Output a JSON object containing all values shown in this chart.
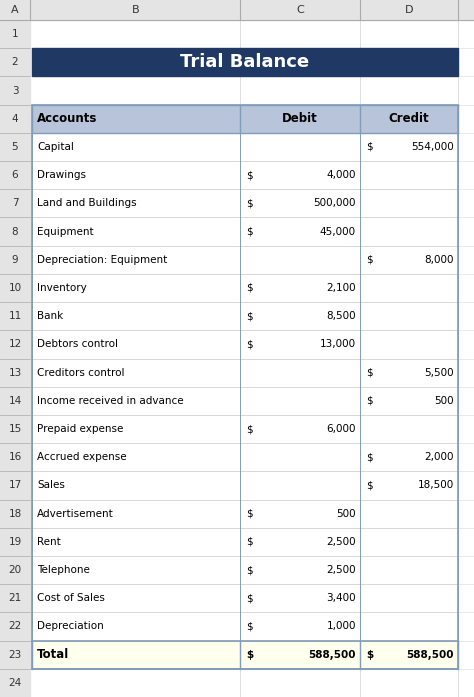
{
  "title": "Trial Balance",
  "title_bg": "#1F3864",
  "title_color": "#FFFFFF",
  "header_bg": "#B8C4D9",
  "total_bg": "#FFFFEE",
  "col_headers": [
    "Accounts",
    "Debit",
    "Credit"
  ],
  "rows": [
    {
      "account": "Capital",
      "debit": "",
      "credit": "554,000"
    },
    {
      "account": "Drawings",
      "debit": "4,000",
      "credit": ""
    },
    {
      "account": "Land and Buildings",
      "debit": "500,000",
      "credit": ""
    },
    {
      "account": "Equipment",
      "debit": "45,000",
      "credit": ""
    },
    {
      "account": "Depreciation: Equipment",
      "debit": "",
      "credit": "8,000"
    },
    {
      "account": "Inventory",
      "debit": "2,100",
      "credit": ""
    },
    {
      "account": "Bank",
      "debit": "8,500",
      "credit": ""
    },
    {
      "account": "Debtors control",
      "debit": "13,000",
      "credit": ""
    },
    {
      "account": "Creditors control",
      "debit": "",
      "credit": "5,500"
    },
    {
      "account": "Income received in advance",
      "debit": "",
      "credit": "500"
    },
    {
      "account": "Prepaid expense",
      "debit": "6,000",
      "credit": ""
    },
    {
      "account": "Accrued expense",
      "debit": "",
      "credit": "2,000"
    },
    {
      "account": "Sales",
      "debit": "",
      "credit": "18,500"
    },
    {
      "account": "Advertisement",
      "debit": "500",
      "credit": ""
    },
    {
      "account": "Rent",
      "debit": "2,500",
      "credit": ""
    },
    {
      "account": "Telephone",
      "debit": "2,500",
      "credit": ""
    },
    {
      "account": "Cost of Sales",
      "debit": "3,400",
      "credit": ""
    },
    {
      "account": "Depreciation",
      "debit": "1,000",
      "credit": ""
    }
  ],
  "total_row": {
    "account": "Total",
    "debit": "588,500",
    "credit": "588,500"
  },
  "grid_color": "#7F9CB8",
  "light_line": "#C8C8C8",
  "excel_header_bg": "#E4E4E4",
  "col_labels": [
    "A",
    "B",
    "C",
    "D"
  ],
  "n_rows": 24,
  "fig_w": 4.74,
  "fig_h": 6.97,
  "dpi": 100
}
